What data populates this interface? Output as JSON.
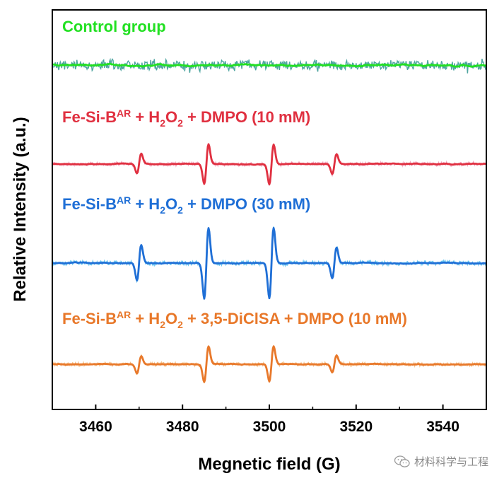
{
  "chart_data": {
    "type": "line",
    "title": "",
    "xlabel": "Megnetic field (G)",
    "ylabel": "Relative Intensity (a.u.)",
    "xlim": [
      3450,
      3550
    ],
    "x_ticks": [
      "3460",
      "3480",
      "3500",
      "3520",
      "3540"
    ],
    "y_ticks": [],
    "series": [
      {
        "name": "Control group",
        "label_parts": [
          {
            "t": "Control group",
            "s": "n"
          }
        ],
        "color": "#22e022",
        "raw_color": "#4ea5a0",
        "peak_amplitude": 0,
        "noise_amplitude": 6
      },
      {
        "name": "Fe-Si-B^AR + H2O2 + DMPO (10 mM)",
        "label_parts": [
          {
            "t": "Fe-Si-B",
            "s": "n"
          },
          {
            "t": "AR",
            "s": "sup"
          },
          {
            "t": " + H",
            "s": "n"
          },
          {
            "t": "2",
            "s": "sub"
          },
          {
            "t": "O",
            "s": "n"
          },
          {
            "t": "2",
            "s": "sub"
          },
          {
            "t": " + DMPO (10 mM)",
            "s": "n"
          }
        ],
        "color": "#e03040",
        "raw_color": "#f2a6c0",
        "peak_positions": [
          3470,
          3485.5,
          3500.5,
          3515
        ],
        "peak_amplitudes": [
          14,
          28,
          28,
          14
        ],
        "noise_amplitude": 2.5
      },
      {
        "name": "Fe-Si-B^AR + H2O2 + DMPO (30 mM)",
        "label_parts": [
          {
            "t": "Fe-Si-B",
            "s": "n"
          },
          {
            "t": "AR",
            "s": "sup"
          },
          {
            "t": " + H",
            "s": "n"
          },
          {
            "t": "2",
            "s": "sub"
          },
          {
            "t": "O",
            "s": "n"
          },
          {
            "t": "2",
            "s": "sub"
          },
          {
            "t": " + DMPO (30 mM)",
            "s": "n"
          }
        ],
        "color": "#1f6fd6",
        "raw_color": "#6ec8f0",
        "peak_positions": [
          3470,
          3485.5,
          3500.5,
          3515
        ],
        "peak_amplitudes": [
          25,
          50,
          50,
          22
        ],
        "noise_amplitude": 3
      },
      {
        "name": "Fe-Si-B^AR + H2O2 + 3,5-DiClSA + DMPO (10 mM)",
        "label_parts": [
          {
            "t": "Fe-Si-B",
            "s": "n"
          },
          {
            "t": "AR",
            "s": "sup"
          },
          {
            "t": " + H",
            "s": "n"
          },
          {
            "t": "2",
            "s": "sub"
          },
          {
            "t": "O",
            "s": "n"
          },
          {
            "t": "2",
            "s": "sub"
          },
          {
            "t": " + 3,5-DiClSA + DMPO (10 mM)",
            "s": "n"
          }
        ],
        "color": "#e8782a",
        "raw_color": "#f5c08a",
        "peak_positions": [
          3470,
          3485.5,
          3500.5,
          3515
        ],
        "peak_amplitudes": [
          12,
          25,
          25,
          12
        ],
        "noise_amplitude": 2.5
      }
    ],
    "grid": false,
    "legend": "text labels above each trace"
  },
  "watermark": {
    "text": "材料科学与工程",
    "icon": "wechat-icon"
  }
}
